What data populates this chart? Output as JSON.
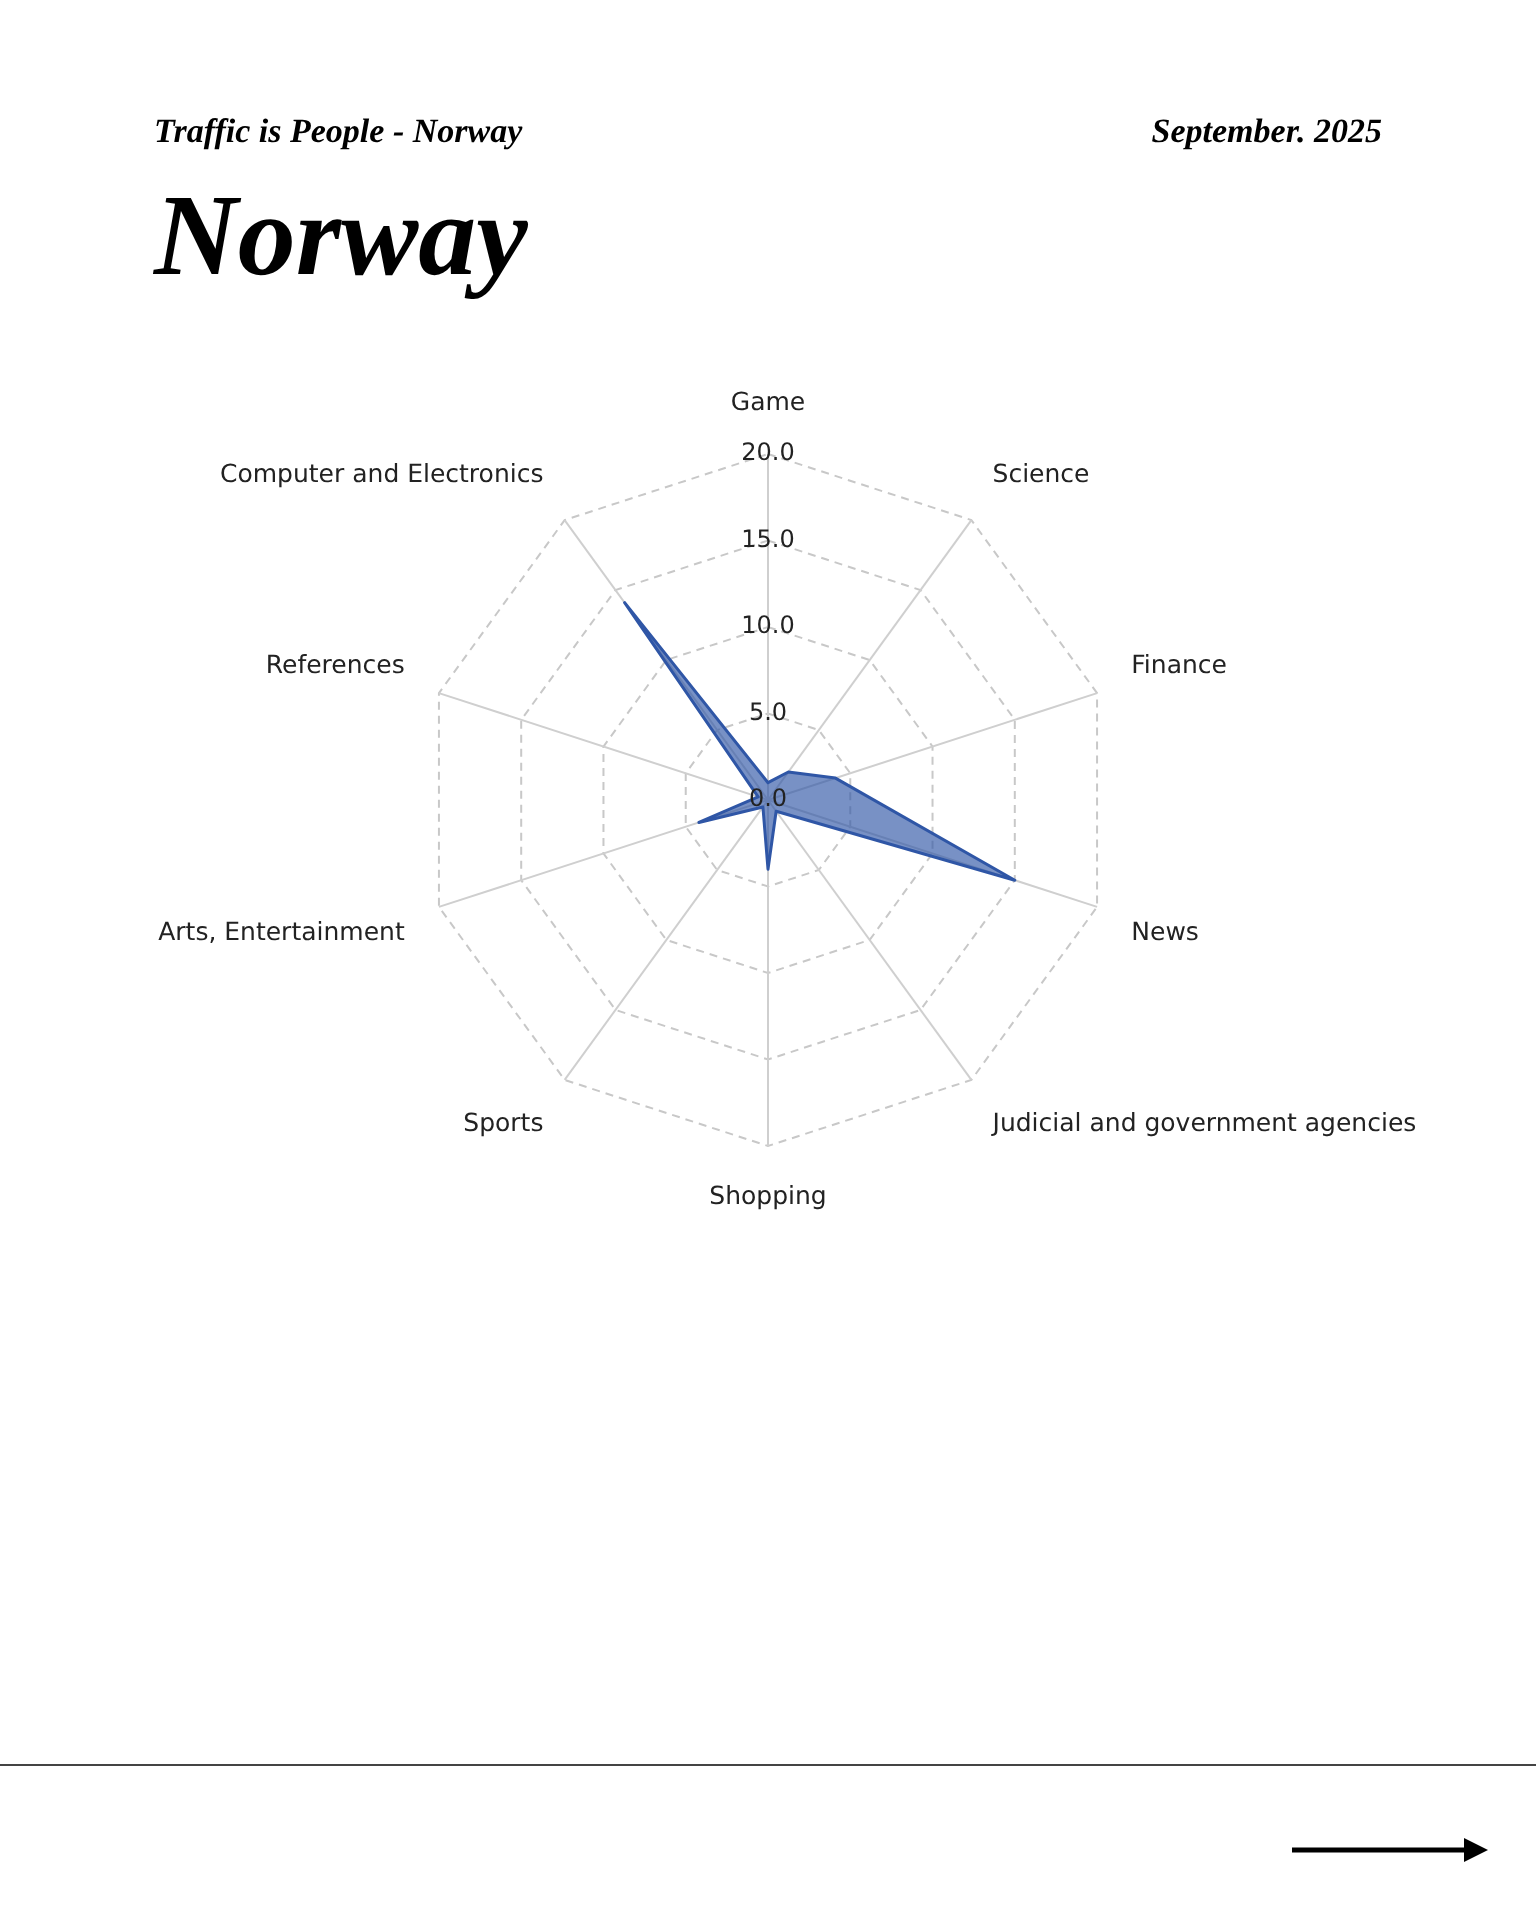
{
  "chart_data": {
    "type": "radar",
    "title": "Norway",
    "subtitle": "Traffic is People - Norway",
    "annotations": [
      "September. 2025"
    ],
    "categories": [
      "Game",
      "Science",
      "Finance",
      "News",
      "Judicial and government agencies",
      "Shopping",
      "Sports",
      "Arts, Entertainment",
      "References",
      "Computer and Electronics"
    ],
    "series": [
      {
        "color": "#2f56a6",
        "values": [
          1.0,
          2.0,
          4.1,
          15.0,
          0.8,
          4.0,
          0.5,
          4.2,
          0.6,
          14.1
        ]
      }
    ],
    "ylim": [
      0,
      20
    ],
    "yticks": [
      {
        "value": 0,
        "label": "0.0"
      },
      {
        "value": 5,
        "label": "5.0"
      },
      {
        "value": 10,
        "label": "10.0"
      },
      {
        "value": 15,
        "label": "15.0"
      },
      {
        "value": 20,
        "label": "20.0"
      }
    ],
    "grid": true,
    "legend": false,
    "marker": "none",
    "line_style": "solid"
  }
}
